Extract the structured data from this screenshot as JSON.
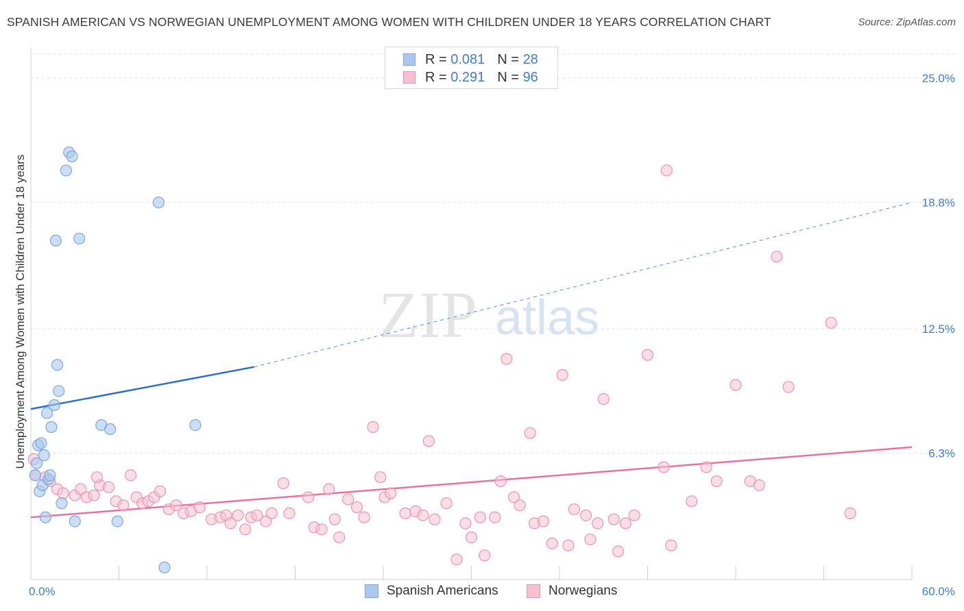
{
  "title": "SPANISH AMERICAN VS NORWEGIAN UNEMPLOYMENT AMONG WOMEN WITH CHILDREN UNDER 18 YEARS CORRELATION CHART",
  "source": "Source: ZipAtlas.com",
  "watermark": {
    "zip": "ZIP",
    "atlas": "atlas"
  },
  "colors": {
    "blue_fill": "#aac8ee",
    "blue_stroke": "#7ba7e0",
    "blue_line": "#2a6fcf",
    "pink_fill": "#f6c2d2",
    "pink_stroke": "#ec92b0",
    "pink_line": "#e8719b",
    "axis_label": "#3b7dd8",
    "grid": "#e3e3e3"
  },
  "legend": [
    {
      "r_label": "R =",
      "r_value": "0.081",
      "n_label": "N =",
      "n_value": "28"
    },
    {
      "r_label": "R =",
      "r_value": "0.291",
      "n_label": "N =",
      "n_value": "96"
    }
  ],
  "bottom_legend": [
    "Spanish Americans",
    "Norwegians"
  ],
  "chart_data": {
    "type": "scatter",
    "title": "SPANISH AMERICAN VS NORWEGIAN UNEMPLOYMENT AMONG WOMEN WITH CHILDREN UNDER 18 YEARS CORRELATION CHART",
    "xlabel": "",
    "ylabel": "Unemployment Among Women with Children Under 18 years",
    "xlim": [
      0,
      60
    ],
    "ylim": [
      0,
      26.2
    ],
    "x_tick_labels": [
      "0.0%",
      "60.0%"
    ],
    "y_ticks": [
      6.3,
      12.5,
      18.8,
      25.0
    ],
    "y_tick_labels": [
      "6.3%",
      "12.5%",
      "18.8%",
      "25.0%"
    ],
    "x_minor_ticks": [
      0,
      6,
      12,
      18,
      24,
      30,
      36,
      42,
      48,
      54,
      60
    ],
    "grid": true,
    "legend_position": "top-center",
    "series": [
      {
        "name": "Spanish Americans",
        "r": 0.081,
        "n": 28,
        "points": [
          [
            0.3,
            5.2
          ],
          [
            0.5,
            6.7
          ],
          [
            0.6,
            4.4
          ],
          [
            0.7,
            6.8
          ],
          [
            0.8,
            4.7
          ],
          [
            0.9,
            6.2
          ],
          [
            1.0,
            3.1
          ],
          [
            1.1,
            8.3
          ],
          [
            1.2,
            5.0
          ],
          [
            1.3,
            5.2
          ],
          [
            1.4,
            7.6
          ],
          [
            1.6,
            8.7
          ],
          [
            1.7,
            16.9
          ],
          [
            1.8,
            10.7
          ],
          [
            1.9,
            9.4
          ],
          [
            2.1,
            3.8
          ],
          [
            2.4,
            20.4
          ],
          [
            2.6,
            21.3
          ],
          [
            2.8,
            21.1
          ],
          [
            3.0,
            2.9
          ],
          [
            3.3,
            17.0
          ],
          [
            4.8,
            7.7
          ],
          [
            5.4,
            7.5
          ],
          [
            5.9,
            2.9
          ],
          [
            8.7,
            18.8
          ],
          [
            9.1,
            0.6
          ],
          [
            11.2,
            7.7
          ],
          [
            0.4,
            5.8
          ]
        ],
        "trend": {
          "x0": 0,
          "y0": 8.5,
          "x1": 15.2,
          "y1": 10.6,
          "dashed_to_x": 60,
          "dashed_to_y": 18.8
        }
      },
      {
        "name": "Norwegians",
        "r": 0.291,
        "n": 96,
        "points": [
          [
            0.2,
            6.0
          ],
          [
            0.3,
            5.2
          ],
          [
            1.0,
            5.1
          ],
          [
            1.3,
            4.9
          ],
          [
            1.8,
            4.5
          ],
          [
            2.2,
            4.3
          ],
          [
            3.0,
            4.2
          ],
          [
            3.4,
            4.5
          ],
          [
            3.8,
            4.1
          ],
          [
            4.3,
            4.2
          ],
          [
            4.7,
            4.7
          ],
          [
            5.3,
            4.6
          ],
          [
            5.8,
            3.9
          ],
          [
            6.3,
            3.7
          ],
          [
            6.8,
            5.2
          ],
          [
            7.2,
            4.1
          ],
          [
            7.6,
            3.8
          ],
          [
            8.0,
            3.9
          ],
          [
            8.4,
            4.1
          ],
          [
            8.8,
            4.4
          ],
          [
            9.4,
            3.5
          ],
          [
            9.9,
            3.7
          ],
          [
            10.4,
            3.3
          ],
          [
            10.9,
            3.4
          ],
          [
            11.5,
            3.6
          ],
          [
            12.3,
            3.0
          ],
          [
            12.9,
            3.1
          ],
          [
            13.3,
            3.2
          ],
          [
            13.6,
            2.8
          ],
          [
            14.1,
            3.2
          ],
          [
            14.6,
            2.5
          ],
          [
            15.0,
            3.1
          ],
          [
            15.4,
            3.2
          ],
          [
            16.0,
            2.9
          ],
          [
            16.4,
            3.3
          ],
          [
            17.2,
            4.8
          ],
          [
            17.6,
            3.3
          ],
          [
            18.9,
            4.1
          ],
          [
            19.3,
            2.6
          ],
          [
            19.8,
            2.5
          ],
          [
            20.3,
            4.5
          ],
          [
            20.7,
            3.0
          ],
          [
            21.0,
            2.1
          ],
          [
            21.6,
            4.0
          ],
          [
            22.2,
            3.6
          ],
          [
            22.7,
            3.1
          ],
          [
            23.3,
            7.6
          ],
          [
            23.8,
            5.1
          ],
          [
            24.1,
            4.1
          ],
          [
            24.5,
            4.3
          ],
          [
            25.5,
            3.3
          ],
          [
            26.2,
            3.4
          ],
          [
            26.7,
            3.2
          ],
          [
            27.1,
            6.9
          ],
          [
            27.5,
            3.0
          ],
          [
            28.3,
            3.8
          ],
          [
            29.0,
            1.0
          ],
          [
            29.6,
            2.8
          ],
          [
            30.0,
            2.1
          ],
          [
            30.6,
            3.1
          ],
          [
            30.9,
            1.2
          ],
          [
            31.6,
            3.1
          ],
          [
            32.0,
            4.9
          ],
          [
            32.4,
            11.0
          ],
          [
            32.9,
            4.1
          ],
          [
            33.3,
            3.7
          ],
          [
            34.0,
            7.3
          ],
          [
            34.3,
            2.8
          ],
          [
            34.9,
            2.9
          ],
          [
            35.5,
            1.8
          ],
          [
            36.2,
            10.2
          ],
          [
            36.6,
            1.7
          ],
          [
            37.0,
            3.5
          ],
          [
            37.8,
            3.2
          ],
          [
            38.1,
            2.0
          ],
          [
            38.6,
            2.8
          ],
          [
            39.0,
            9.0
          ],
          [
            39.7,
            3.0
          ],
          [
            40.0,
            1.4
          ],
          [
            40.5,
            2.8
          ],
          [
            41.1,
            3.2
          ],
          [
            42.0,
            11.2
          ],
          [
            43.1,
            5.6
          ],
          [
            43.6,
            1.7
          ],
          [
            45.0,
            3.9
          ],
          [
            46.0,
            5.6
          ],
          [
            46.7,
            4.9
          ],
          [
            48.0,
            9.7
          ],
          [
            49.0,
            4.9
          ],
          [
            49.6,
            4.7
          ],
          [
            50.8,
            16.1
          ],
          [
            51.6,
            9.6
          ],
          [
            54.5,
            12.8
          ],
          [
            55.8,
            3.3
          ],
          [
            43.3,
            20.4
          ],
          [
            4.5,
            5.1
          ]
        ],
        "trend": {
          "x0": 0,
          "y0": 3.1,
          "x1": 60,
          "y1": 6.6
        }
      }
    ]
  }
}
